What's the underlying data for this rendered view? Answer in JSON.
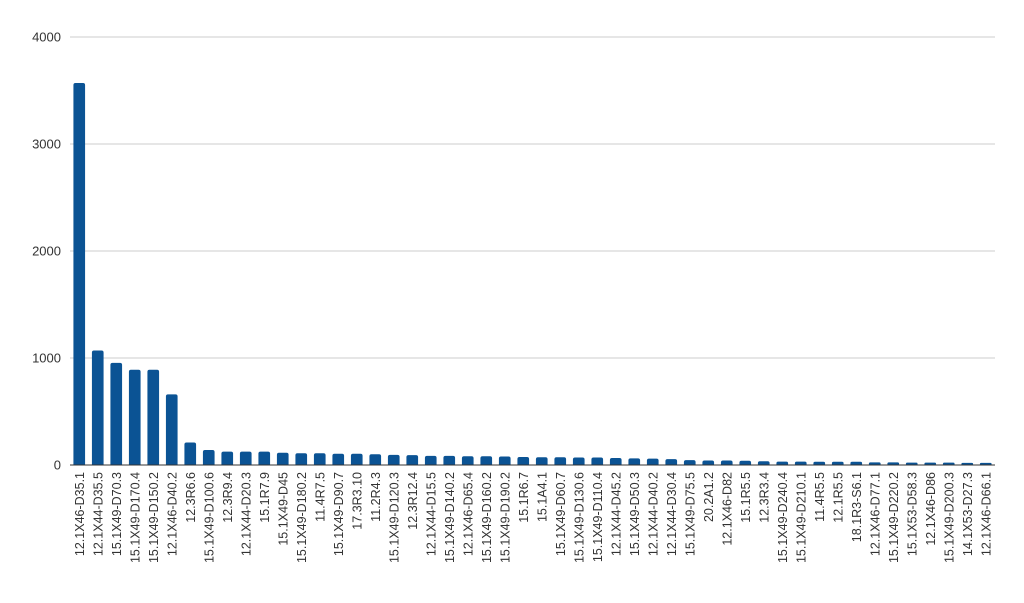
{
  "chart_data": {
    "type": "bar",
    "title": "",
    "xlabel": "",
    "ylabel": "",
    "ylim": [
      0,
      4000
    ],
    "yticks": [
      0,
      1000,
      2000,
      3000,
      4000
    ],
    "grid": true,
    "bar_color": "#0b5394",
    "grid_color": "#cccccc",
    "axis_color": "#333333",
    "categories": [
      "12.1X46-D35.1",
      "12.1X44-D35.5",
      "15.1X49-D70.3",
      "15.1X49-D170.4",
      "15.1X49-D150.2",
      "12.1X46-D40.2",
      "12.3R6.6",
      "15.1X49-D100.6",
      "12.3R9.4",
      "12.1X44-D20.3",
      "15.1R7.9",
      "15.1X49-D45",
      "15.1X49-D180.2",
      "11.4R7.5",
      "15.1X49-D90.7",
      "17.3R3.10",
      "11.2R4.3",
      "15.1X49-D120.3",
      "12.3R12.4",
      "12.1X44-D15.5",
      "15.1X49-D140.2",
      "12.1X46-D65.4",
      "15.1X49-D160.2",
      "15.1X49-D190.2",
      "15.1R6.7",
      "15.1A4.1",
      "15.1X49-D60.7",
      "15.1X49-D130.6",
      "15.1X49-D110.4",
      "12.1X44-D45.2",
      "15.1X49-D50.3",
      "12.1X44-D40.2",
      "12.1X44-D30.4",
      "15.1X49-D75.5",
      "20.2A1.2",
      "12.1X46-D82",
      "15.1R5.5",
      "12.3R3.4",
      "15.1X49-D240.4",
      "15.1X49-D210.1",
      "11.4R5.5",
      "12.1R5.5",
      "18.1R3-S6.1",
      "12.1X46-D77.1",
      "15.1X49-D220.2",
      "15.1X53-D58.3",
      "12.1X46-D86",
      "15.1X49-D200.3",
      "14.1X53-D27.3",
      "12.1X46-D66.1"
    ],
    "values": [
      3570,
      1070,
      955,
      890,
      890,
      660,
      210,
      140,
      125,
      125,
      125,
      115,
      110,
      110,
      105,
      105,
      100,
      95,
      92,
      85,
      85,
      82,
      82,
      80,
      75,
      72,
      72,
      70,
      70,
      65,
      62,
      60,
      55,
      45,
      42,
      42,
      40,
      35,
      32,
      32,
      30,
      30,
      30,
      25,
      25,
      22,
      22,
      22,
      20,
      20
    ]
  }
}
